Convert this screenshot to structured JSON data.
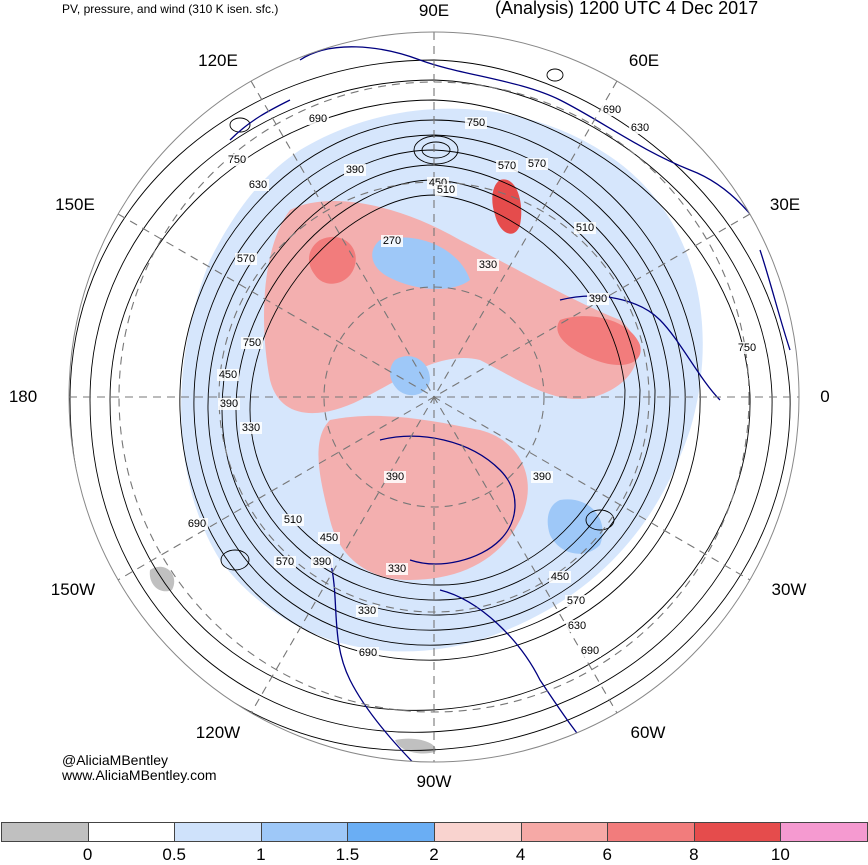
{
  "header": {
    "left_title": "PV, pressure, and wind (310 K isen. sfc.)",
    "right_title": "(Analysis) 1200 UTC 4 Dec 2017"
  },
  "longitude_labels": {
    "lon_90e": "90E",
    "lon_60e": "60E",
    "lon_120e": "120E",
    "lon_30e": "30E",
    "lon_150e": "150E",
    "lon_180": "180",
    "lon_0": "0",
    "lon_150w": "150W",
    "lon_30w": "30W",
    "lon_120w": "120W",
    "lon_60w": "60W",
    "lon_90w": "90W"
  },
  "contour_labels": [
    "690",
    "750",
    "630",
    "390",
    "450",
    "510",
    "570",
    "570",
    "510",
    "750",
    "630",
    "570",
    "690",
    "270",
    "330",
    "390",
    "750",
    "750",
    "450",
    "390",
    "330",
    "390",
    "690",
    "510",
    "450",
    "570",
    "390",
    "330",
    "330",
    "450",
    "570",
    "630",
    "690",
    "690",
    "390"
  ],
  "credits": {
    "handle": "@AliciaMBentley",
    "website": "www.AliciaMBentley.com"
  },
  "colorbar": {
    "tick_labels": [
      "0",
      "0.5",
      "1",
      "1.5",
      "2",
      "4",
      "6",
      "8",
      "10"
    ],
    "colors": [
      "#c0c0c0",
      "#ffffff",
      "#cfe2fb",
      "#9ec8f8",
      "#6aaef4",
      "#f9d3cf",
      "#f6a9a6",
      "#f27c7c",
      "#e54c4c",
      "#f59ad0"
    ]
  },
  "map_colors": {
    "blue_light": "#cfe2fb",
    "blue_mid": "#9ec8f8",
    "red_light": "#f9d3cf",
    "red_mid": "#f6a9a6",
    "red_strong": "#f27c7c",
    "coast": "#000080",
    "grid": "#777777"
  }
}
